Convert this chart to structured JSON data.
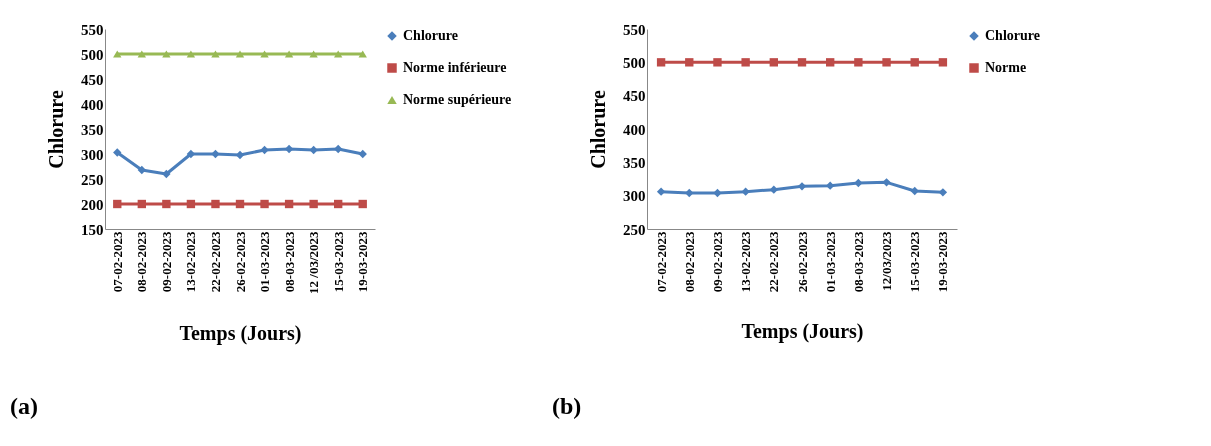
{
  "chart_data": [
    {
      "type": "line",
      "xlabel": "Temps (Jours)",
      "ylabel": "Chlorure",
      "categories": [
        "07-02-2023",
        "08-02-2023",
        "09-02-2023",
        "13-02-2023",
        "22-02-2023",
        "26-02-2023",
        "01-03-2023",
        "08-03-2023",
        "12 /03/2023",
        "15-03-2023",
        "19-03-2023"
      ],
      "series": [
        {
          "name": "Chlorure",
          "color": "#4a7ebb",
          "marker": "diamond",
          "values": [
            303,
            268,
            260,
            300,
            300,
            298,
            308,
            310,
            308,
            310,
            300
          ]
        },
        {
          "name": "Norme inférieure",
          "color": "#be4b48",
          "marker": "square",
          "values": [
            200,
            200,
            200,
            200,
            200,
            200,
            200,
            200,
            200,
            200,
            200
          ]
        },
        {
          "name": "Norme supérieure",
          "color": "#98b954",
          "marker": "triangle",
          "values": [
            500,
            500,
            500,
            500,
            500,
            500,
            500,
            500,
            500,
            500,
            500
          ]
        }
      ],
      "ylim": [
        150,
        550
      ],
      "yticks": [
        150,
        200,
        250,
        300,
        350,
        400,
        450,
        500,
        550
      ],
      "grid": false,
      "legend": "right",
      "annotations": [
        "(a)"
      ]
    },
    {
      "type": "line",
      "xlabel": "Temps (Jours)",
      "ylabel": "Chlorure",
      "categories": [
        "07-02-2023",
        "08-02-2023",
        "09-02-2023",
        "13-02-2023",
        "22-02-2023",
        "26-02-2023",
        "01-03-2023",
        "08-03-2023",
        "12/03/2023",
        "15-03-2023",
        "19-03-2023"
      ],
      "series": [
        {
          "name": "Chlorure",
          "color": "#4a7ebb",
          "marker": "diamond",
          "values": [
            306,
            304,
            304,
            306,
            309,
            314,
            315,
            319,
            320,
            307,
            305
          ]
        },
        {
          "name": "Norme",
          "color": "#be4b48",
          "marker": "square",
          "values": [
            500,
            500,
            500,
            500,
            500,
            500,
            500,
            500,
            500,
            500,
            500
          ]
        }
      ],
      "ylim": [
        250,
        550
      ],
      "yticks": [
        250,
        300,
        350,
        400,
        450,
        500,
        550
      ],
      "grid": false,
      "legend": "right",
      "annotations": [
        "(b)"
      ]
    }
  ]
}
